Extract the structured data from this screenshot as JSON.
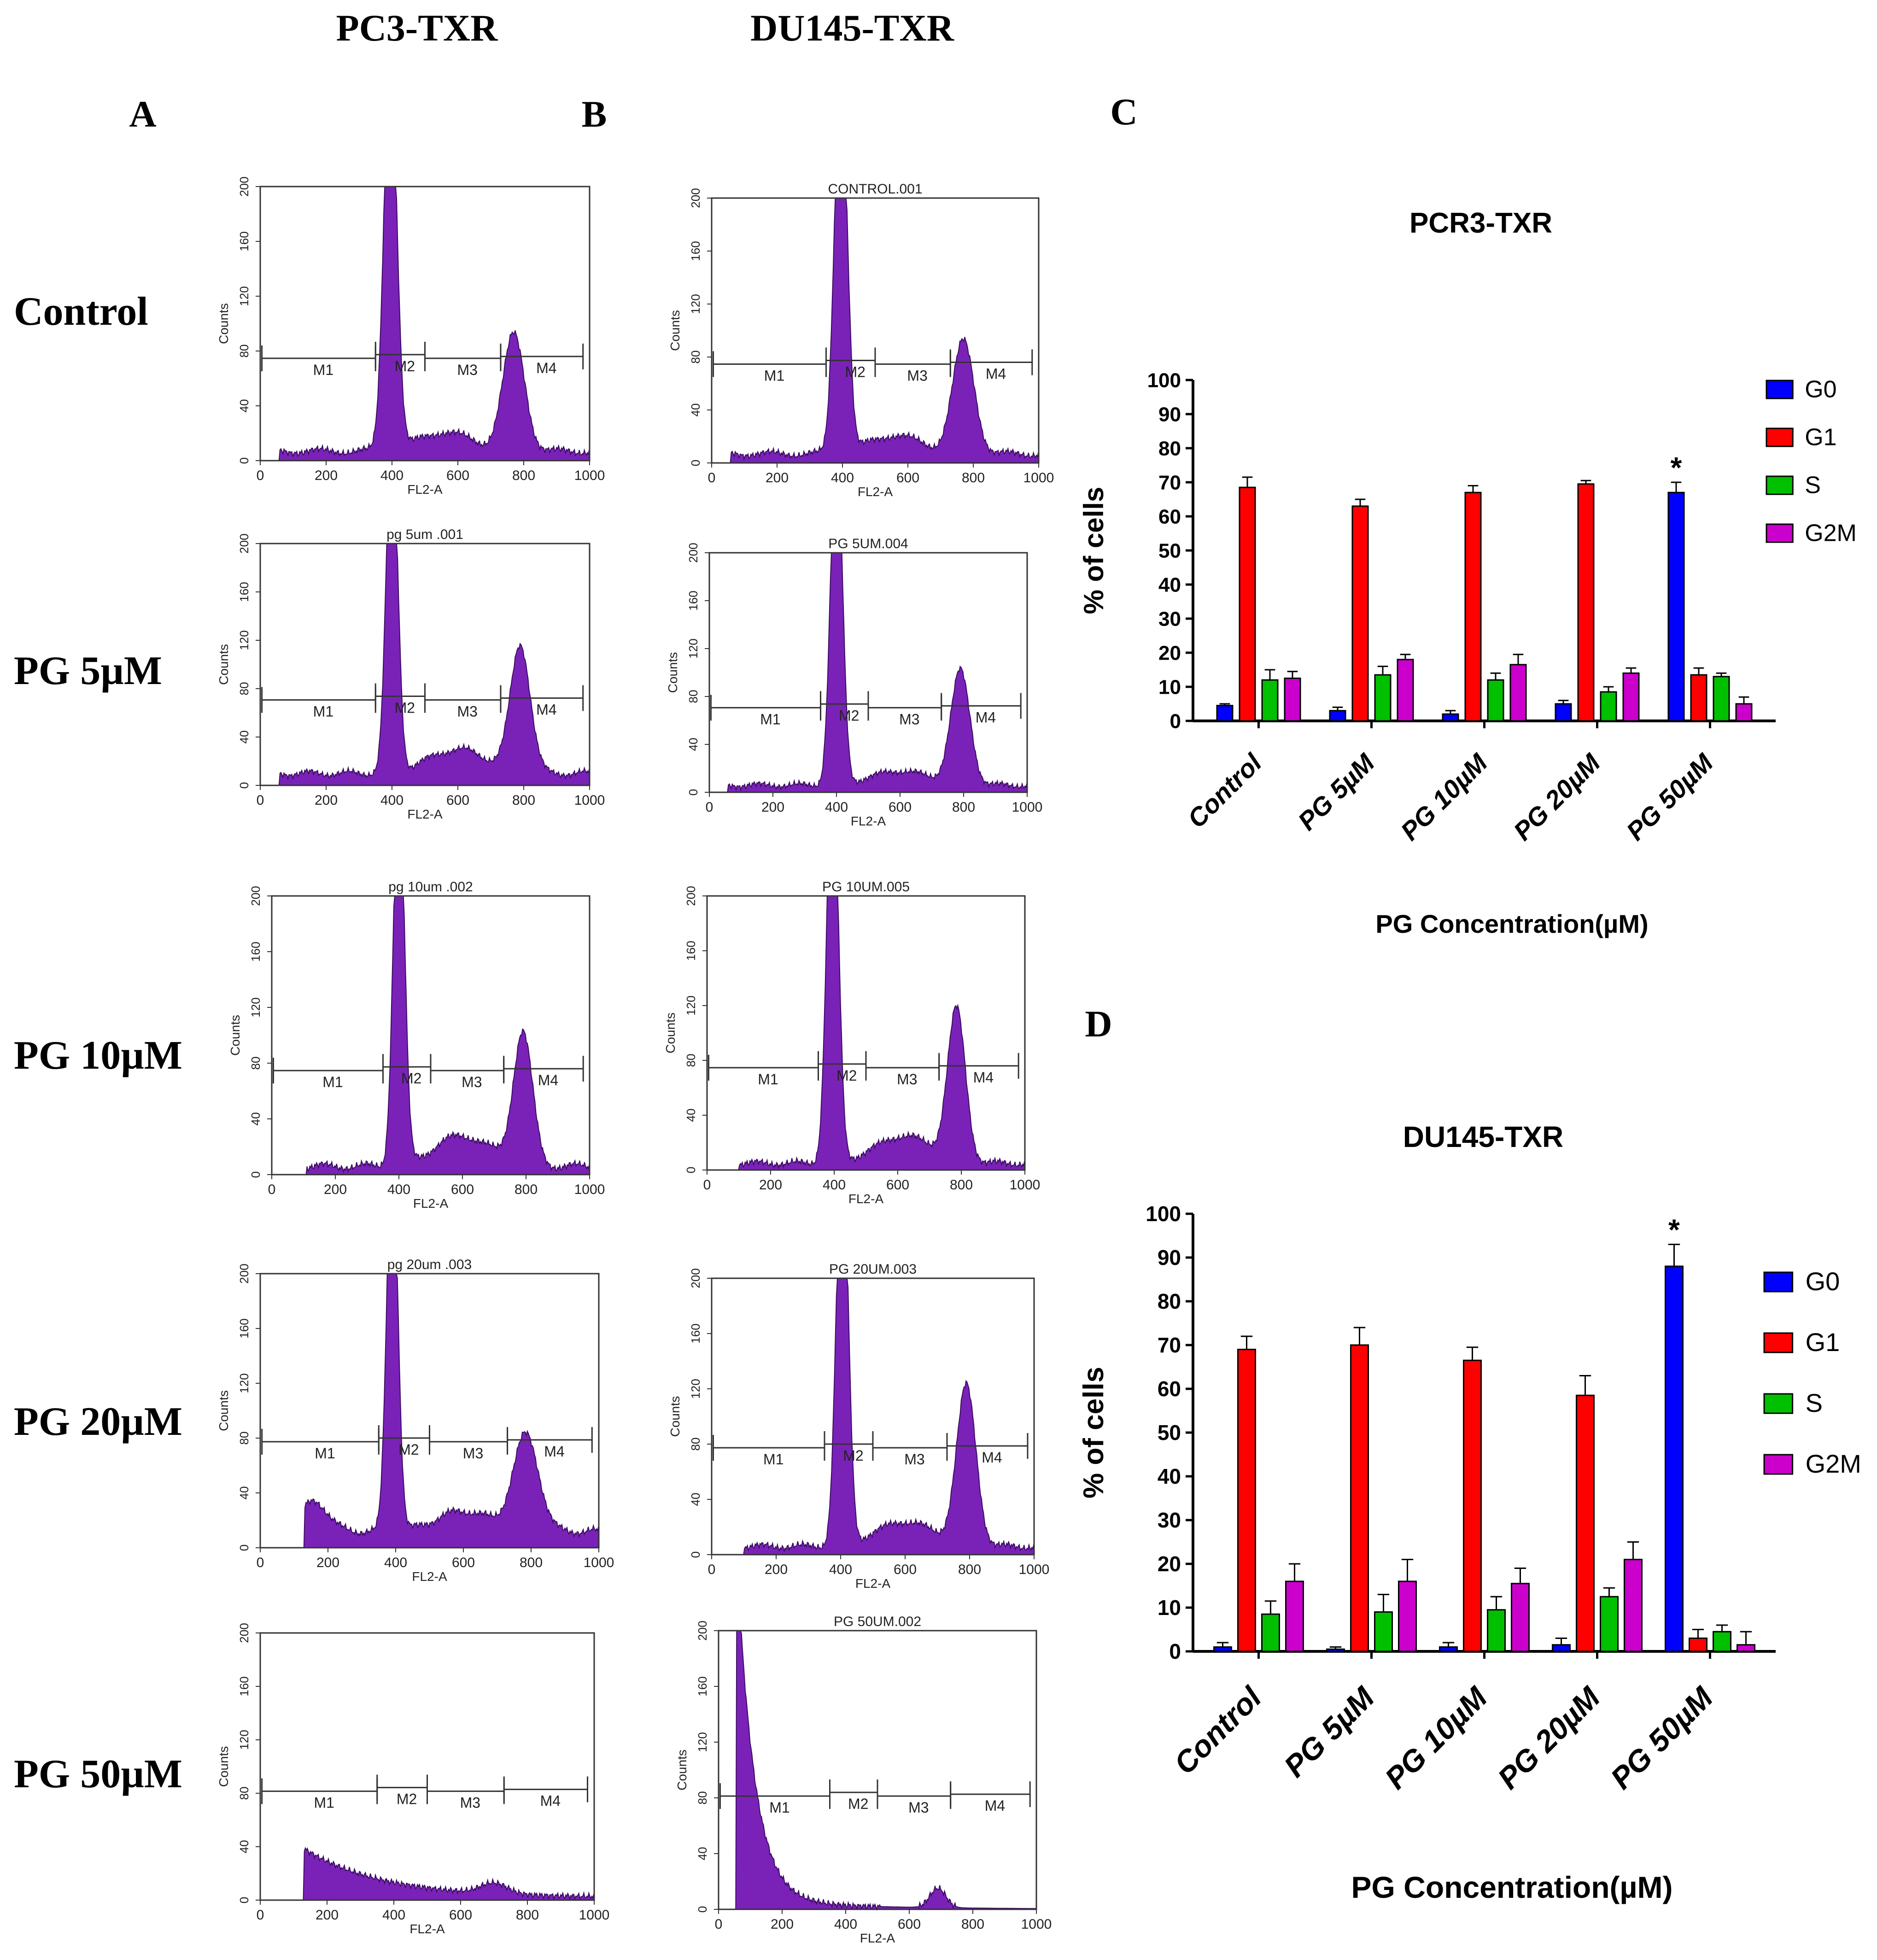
{
  "column_headers": [
    "PC3-TXR",
    "DU145-TXR"
  ],
  "panel_letters": [
    "A",
    "B",
    "C",
    "D"
  ],
  "row_labels": [
    "Control",
    "PG 5µM",
    "PG 10µM",
    "PG 20µM",
    "PG 50µM"
  ],
  "histograms": {
    "y_label": "Counts",
    "x_label": "FL2-A",
    "x_ticks": [
      "0",
      "200",
      "400",
      "600",
      "800",
      "1000"
    ],
    "y_ticks": [
      "0",
      "40",
      "80",
      "120",
      "160",
      "200"
    ],
    "x_range": [
      0,
      1000
    ],
    "y_range": [
      0,
      200
    ],
    "gate_labels": [
      "M1",
      "M2",
      "M3",
      "M4"
    ],
    "gate_bounds": [
      [
        0,
        350
      ],
      [
        350,
        500
      ],
      [
        500,
        730
      ],
      [
        730,
        1000
      ]
    ],
    "fill_color": "#7a22b8",
    "pc3_titles": [
      "",
      "pg 5um .001",
      "pg 10um .002",
      "pg 20um .003",
      ""
    ],
    "du145_titles": [
      "CONTROL.001",
      "PG 5UM.004",
      "PG 10UM.005",
      "PG 20UM.003",
      "PG 50UM.002"
    ]
  },
  "chart_data": [
    {
      "type": "bar",
      "title": "PCR3-TXR",
      "xlabel": "PG Concentration(µM)",
      "ylabel": "% of cells",
      "ylim": [
        0,
        100
      ],
      "yticks": [
        "0",
        "10",
        "20",
        "30",
        "40",
        "50",
        "60",
        "70",
        "80",
        "90",
        "100"
      ],
      "categories": [
        "Control",
        "PG 5µM",
        "PG 10µM",
        "PG 20µM",
        "PG 50µM"
      ],
      "series": [
        {
          "name": "G0",
          "color": "#0000ff",
          "values": [
            4.5,
            3,
            2,
            5,
            67
          ],
          "errors": [
            0.5,
            1,
            1,
            1,
            3
          ]
        },
        {
          "name": "G1",
          "color": "#ff0000",
          "values": [
            68.5,
            63,
            67,
            69.5,
            13.5
          ],
          "errors": [
            3,
            2,
            2,
            1,
            2
          ]
        },
        {
          "name": "S",
          "color": "#00c000",
          "values": [
            12,
            13.5,
            12,
            8.5,
            13
          ],
          "errors": [
            3,
            2.5,
            2,
            1.5,
            1
          ]
        },
        {
          "name": "G2M",
          "color": "#cc00cc",
          "values": [
            12.5,
            18,
            16.5,
            14,
            5
          ],
          "errors": [
            2,
            1.5,
            3,
            1.5,
            2
          ]
        }
      ],
      "annotation": "*"
    },
    {
      "type": "bar",
      "title": "DU145-TXR",
      "xlabel": "PG Concentration(µM)",
      "ylabel": "% of cells",
      "ylim": [
        0,
        100
      ],
      "yticks": [
        "0",
        "10",
        "20",
        "30",
        "40",
        "50",
        "60",
        "70",
        "80",
        "90",
        "100"
      ],
      "categories": [
        "Control",
        "PG 5µM",
        "PG 10µM",
        "PG 20µM",
        "PG 50µM"
      ],
      "series": [
        {
          "name": "G0",
          "color": "#0000ff",
          "values": [
            1,
            0.5,
            1,
            1.5,
            88
          ],
          "errors": [
            1,
            0.5,
            1,
            1.5,
            5
          ]
        },
        {
          "name": "G1",
          "color": "#ff0000",
          "values": [
            69,
            70,
            66.5,
            58.5,
            3
          ],
          "errors": [
            3,
            4,
            3,
            4.5,
            2
          ]
        },
        {
          "name": "S",
          "color": "#00c000",
          "values": [
            8.5,
            9,
            9.5,
            12.5,
            4.5
          ],
          "errors": [
            3,
            4,
            3,
            2,
            1.5
          ]
        },
        {
          "name": "G2M",
          "color": "#cc00cc",
          "values": [
            16,
            16,
            15.5,
            21,
            1.5
          ],
          "errors": [
            4,
            5,
            3.5,
            4,
            3
          ]
        }
      ],
      "annotation": "*"
    }
  ]
}
